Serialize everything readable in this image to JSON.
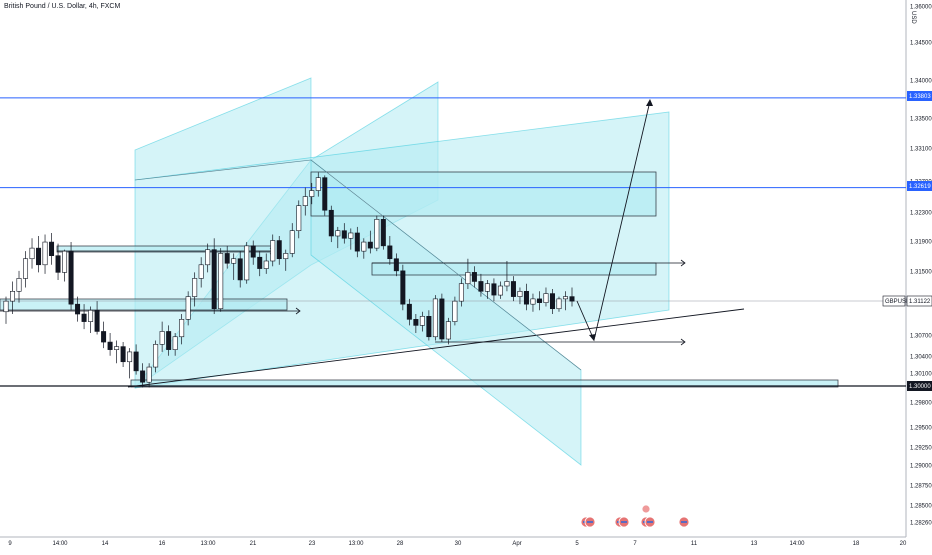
{
  "chart_data": {
    "type": "candlestick",
    "title": "British Pound / U.S. Dollar, 4h, FXCM",
    "currency": "USD",
    "symbol": "GBPUSD",
    "current_price": 1.31122,
    "ylim": [
      1.281,
      1.3622
    ],
    "y_ticks": [
      1.36,
      1.345,
      1.34,
      1.335,
      1.331,
      1.327,
      1.323,
      1.319,
      1.315,
      1.307,
      1.304,
      1.301,
      1.298,
      1.295,
      1.2925,
      1.29,
      1.2875,
      1.285,
      1.2826
    ],
    "y_ticks_label": [
      "1.36000",
      "1.34500",
      "1.34000",
      "1.33500",
      "1.33100",
      "1.32700",
      "1.32300",
      "1.31900",
      "1.31500",
      "1.30700",
      "1.30400",
      "1.30100",
      "1.29800",
      "1.29500",
      "1.29250",
      "1.29000",
      "1.28750",
      "1.28500",
      "1.28260"
    ],
    "price_labels": [
      {
        "value": 1.33803,
        "text": "1.33803",
        "color": "#2962ff"
      },
      {
        "value": 1.32619,
        "text": "1.32619",
        "color": "#2962ff"
      },
      {
        "value": 1.31122,
        "text": "GBPUSD",
        "color": "#131722"
      },
      {
        "value": 1.3,
        "text": "1.30000",
        "color": "#131722"
      }
    ],
    "x_ticks": [
      "9",
      "14:00",
      "14",
      "16",
      "13:00",
      "21",
      "23",
      "13:00",
      "28",
      "30",
      "Apr",
      "5",
      "7",
      "11",
      "13",
      "14:00",
      "18",
      "20"
    ],
    "candles": [
      [
        1.3098,
        1.3118,
        1.3082,
        1.3112
      ],
      [
        1.3112,
        1.3138,
        1.3095,
        1.3125
      ],
      [
        1.3125,
        1.3152,
        1.311,
        1.3142
      ],
      [
        1.3142,
        1.3178,
        1.313,
        1.3168
      ],
      [
        1.3168,
        1.3195,
        1.3155,
        1.3182
      ],
      [
        1.3182,
        1.3198,
        1.315,
        1.316
      ],
      [
        1.316,
        1.32,
        1.3148,
        1.319
      ],
      [
        1.319,
        1.3202,
        1.316,
        1.3172
      ],
      [
        1.3172,
        1.3188,
        1.314,
        1.315
      ],
      [
        1.315,
        1.318,
        1.3138,
        1.3178
      ],
      [
        1.3178,
        1.319,
        1.31,
        1.3108
      ],
      [
        1.3108,
        1.3118,
        1.3085,
        1.3095
      ],
      [
        1.3095,
        1.3108,
        1.3075,
        1.3085
      ],
      [
        1.3085,
        1.3105,
        1.307,
        1.31
      ],
      [
        1.31,
        1.3112,
        1.3068,
        1.3072
      ],
      [
        1.3072,
        1.3085,
        1.305,
        1.3058
      ],
      [
        1.3058,
        1.307,
        1.304,
        1.3048
      ],
      [
        1.3048,
        1.306,
        1.303,
        1.3052
      ],
      [
        1.3052,
        1.3058,
        1.3025,
        1.3032
      ],
      [
        1.3032,
        1.305,
        1.301,
        1.3045
      ],
      [
        1.3045,
        1.3055,
        1.3015,
        1.302
      ],
      [
        1.302,
        1.303,
        1.2998,
        1.3005
      ],
      [
        1.3005,
        1.303,
        1.2998,
        1.3025
      ],
      [
        1.3025,
        1.306,
        1.3018,
        1.3055
      ],
      [
        1.3055,
        1.3085,
        1.3045,
        1.3072
      ],
      [
        1.3072,
        1.308,
        1.304,
        1.3048
      ],
      [
        1.3048,
        1.307,
        1.304,
        1.3065
      ],
      [
        1.3065,
        1.3095,
        1.3055,
        1.3088
      ],
      [
        1.3088,
        1.3125,
        1.308,
        1.3118
      ],
      [
        1.3118,
        1.315,
        1.3105,
        1.3142
      ],
      [
        1.3142,
        1.317,
        1.313,
        1.316
      ],
      [
        1.316,
        1.3188,
        1.315,
        1.318
      ],
      [
        1.318,
        1.3195,
        1.3095,
        1.3102
      ],
      [
        1.3102,
        1.3182,
        1.3098,
        1.3175
      ],
      [
        1.3175,
        1.3185,
        1.3155,
        1.3162
      ],
      [
        1.3162,
        1.3175,
        1.314,
        1.3168
      ],
      [
        1.3168,
        1.3178,
        1.313,
        1.314
      ],
      [
        1.314,
        1.319,
        1.3135,
        1.3185
      ],
      [
        1.3185,
        1.3192,
        1.316,
        1.317
      ],
      [
        1.317,
        1.3178,
        1.3145,
        1.3155
      ],
      [
        1.3155,
        1.3175,
        1.3148,
        1.3165
      ],
      [
        1.3165,
        1.32,
        1.3158,
        1.3192
      ],
      [
        1.3192,
        1.3198,
        1.316,
        1.3168
      ],
      [
        1.3168,
        1.318,
        1.3152,
        1.3175
      ],
      [
        1.3175,
        1.3215,
        1.317,
        1.3205
      ],
      [
        1.3205,
        1.3245,
        1.3195,
        1.3238
      ],
      [
        1.3238,
        1.3262,
        1.3225,
        1.325
      ],
      [
        1.325,
        1.3268,
        1.324,
        1.3258
      ],
      [
        1.3258,
        1.3282,
        1.325,
        1.3275
      ],
      [
        1.3275,
        1.3278,
        1.3225,
        1.3232
      ],
      [
        1.3232,
        1.3238,
        1.319,
        1.3198
      ],
      [
        1.3198,
        1.321,
        1.3182,
        1.3205
      ],
      [
        1.3205,
        1.3215,
        1.3188,
        1.3195
      ],
      [
        1.3195,
        1.3208,
        1.318,
        1.3202
      ],
      [
        1.3202,
        1.321,
        1.317,
        1.3178
      ],
      [
        1.3178,
        1.3195,
        1.3168,
        1.319
      ],
      [
        1.319,
        1.3205,
        1.3175,
        1.3182
      ],
      [
        1.3182,
        1.3225,
        1.3178,
        1.322
      ],
      [
        1.322,
        1.3225,
        1.318,
        1.3185
      ],
      [
        1.3185,
        1.3198,
        1.316,
        1.3168
      ],
      [
        1.3168,
        1.3175,
        1.3145,
        1.3152
      ],
      [
        1.3152,
        1.316,
        1.31,
        1.3108
      ],
      [
        1.3108,
        1.3115,
        1.308,
        1.3088
      ],
      [
        1.3088,
        1.3095,
        1.307,
        1.308
      ],
      [
        1.308,
        1.3098,
        1.3072,
        1.3092
      ],
      [
        1.3092,
        1.31,
        1.306,
        1.3065
      ],
      [
        1.3065,
        1.312,
        1.306,
        1.3115
      ],
      [
        1.3115,
        1.3122,
        1.3058,
        1.3062
      ],
      [
        1.3062,
        1.309,
        1.3055,
        1.3085
      ],
      [
        1.3085,
        1.3118,
        1.308,
        1.3112
      ],
      [
        1.3112,
        1.3142,
        1.3105,
        1.3135
      ],
      [
        1.3135,
        1.3168,
        1.3128,
        1.315
      ],
      [
        1.315,
        1.3158,
        1.313,
        1.3138
      ],
      [
        1.3138,
        1.3148,
        1.3118,
        1.3125
      ],
      [
        1.3125,
        1.314,
        1.3115,
        1.3135
      ],
      [
        1.3135,
        1.3142,
        1.3112,
        1.312
      ],
      [
        1.312,
        1.3138,
        1.3115,
        1.3132
      ],
      [
        1.3132,
        1.3165,
        1.3125,
        1.3138
      ],
      [
        1.3138,
        1.3145,
        1.3112,
        1.3118
      ],
      [
        1.3118,
        1.313,
        1.3108,
        1.3125
      ],
      [
        1.3125,
        1.3135,
        1.31,
        1.3108
      ],
      [
        1.3108,
        1.3122,
        1.3098,
        1.3115
      ],
      [
        1.3115,
        1.3125,
        1.31,
        1.311
      ],
      [
        1.311,
        1.313,
        1.3105,
        1.3122
      ],
      [
        1.3122,
        1.3128,
        1.3095,
        1.3102
      ],
      [
        1.3102,
        1.3118,
        1.3098,
        1.3115
      ],
      [
        1.3115,
        1.3125,
        1.31,
        1.3118
      ],
      [
        1.3118,
        1.313,
        1.3105,
        1.3112
      ]
    ]
  },
  "events": [
    {
      "icon": "us-flag-event-icon",
      "count": 2
    },
    {
      "icon": "uk-flag-event-icon",
      "count": 2
    },
    {
      "icon": "us-flag-event-icon",
      "count": 2
    },
    {
      "icon": "us-flag-event-icon",
      "count": 1
    }
  ],
  "colors": {
    "bull_fill": "#ffffff",
    "bear_fill": "#131722",
    "candle_stroke": "#131722",
    "zone_fill": "#b2ebf2",
    "zone_stroke": "#26c6da",
    "blue_line": "#2962ff",
    "flag_red": "#e57373",
    "flag_blue": "#5c6bc0"
  }
}
